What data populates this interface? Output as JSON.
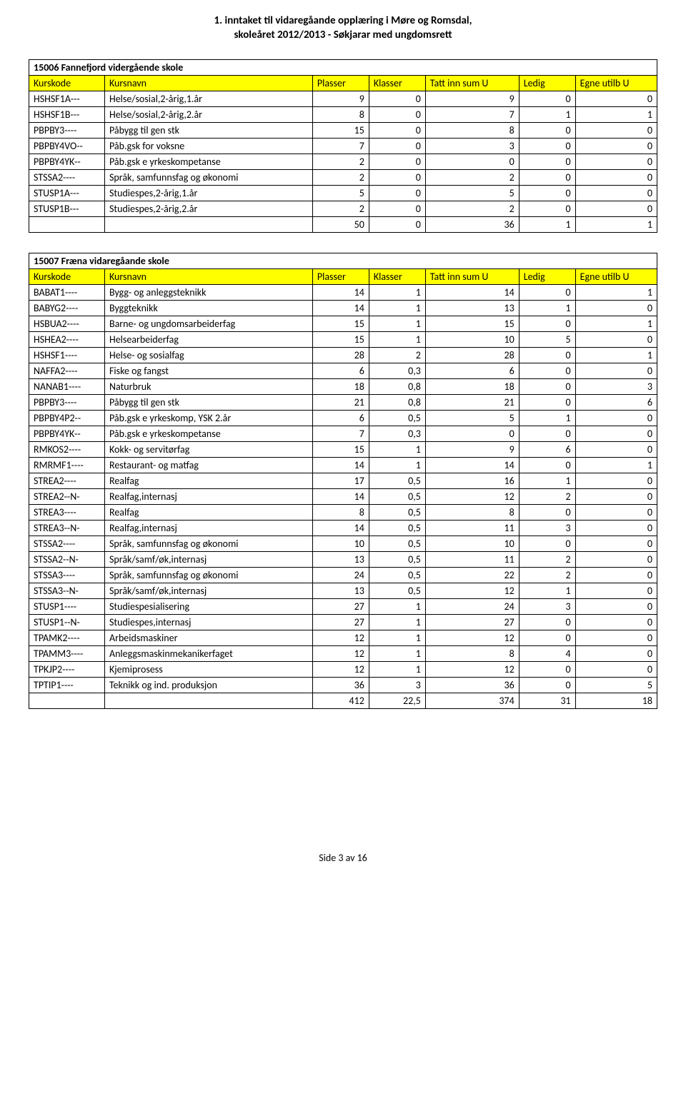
{
  "header": {
    "line1": "1. inntaket til vidaregåande opplæring i Møre og Romsdal,",
    "line2": "skoleåret 2012/2013 - Søkjarar med ungdomsrett"
  },
  "columns": [
    "Kurskode",
    "Kursnavn",
    "Plasser",
    "Klasser",
    "Tatt inn sum U",
    "Ledig",
    "Egne utilb U"
  ],
  "tables": [
    {
      "title": "15006 Fannefjord vidergående skole",
      "rows": [
        [
          "HSHSF1A---",
          "Helse/sosial,2-årig,1.år",
          "9",
          "0",
          "9",
          "0",
          "0"
        ],
        [
          "HSHSF1B---",
          "Helse/sosial,2-årig,2.år",
          "8",
          "0",
          "7",
          "1",
          "1"
        ],
        [
          "PBPBY3----",
          "Påbygg til gen stk",
          "15",
          "0",
          "8",
          "0",
          "0"
        ],
        [
          "PBPBY4VO--",
          "Påb.gsk  for voksne",
          "7",
          "0",
          "3",
          "0",
          "0"
        ],
        [
          "PBPBY4YK--",
          "Påb.gsk  e yrkeskompetanse",
          "2",
          "0",
          "0",
          "0",
          "0"
        ],
        [
          "STSSA2----",
          "Språk, samfunnsfag og økonomi",
          "2",
          "0",
          "2",
          "0",
          "0"
        ],
        [
          "STUSP1A---",
          "Studiespes,2-årig,1.år",
          "5",
          "0",
          "5",
          "0",
          "0"
        ],
        [
          "STUSP1B---",
          "Studiespes,2-årig,2.år",
          "2",
          "0",
          "2",
          "0",
          "0"
        ]
      ],
      "totals": [
        "",
        "",
        "50",
        "0",
        "36",
        "1",
        "1"
      ]
    },
    {
      "title": "15007 Fræna vidaregåande skole",
      "rows": [
        [
          "BABAT1----",
          "Bygg- og anleggsteknikk",
          "14",
          "1",
          "14",
          "0",
          "1"
        ],
        [
          "BABYG2----",
          "Byggteknikk",
          "14",
          "1",
          "13",
          "1",
          "0"
        ],
        [
          "HSBUA2----",
          "Barne- og ungdomsarbeiderfag",
          "15",
          "1",
          "15",
          "0",
          "1"
        ],
        [
          "HSHEA2----",
          "Helsearbeiderfag",
          "15",
          "1",
          "10",
          "5",
          "0"
        ],
        [
          "HSHSF1----",
          "Helse- og sosialfag",
          "28",
          "2",
          "28",
          "0",
          "1"
        ],
        [
          "NAFFA2----",
          "Fiske og fangst",
          "6",
          "0,3",
          "6",
          "0",
          "0"
        ],
        [
          "NANAB1----",
          "Naturbruk",
          "18",
          "0,8",
          "18",
          "0",
          "3"
        ],
        [
          "PBPBY3----",
          "Påbygg til gen stk",
          "21",
          "0,8",
          "21",
          "0",
          "6"
        ],
        [
          "PBPBY4P2--",
          "Påb.gsk e yrkeskomp, YSK 2.år",
          "6",
          "0,5",
          "5",
          "1",
          "0"
        ],
        [
          "PBPBY4YK--",
          "Påb.gsk  e yrkeskompetanse",
          "7",
          "0,3",
          "0",
          "0",
          "0"
        ],
        [
          "RMKOS2----",
          "Kokk- og servitørfag",
          "15",
          "1",
          "9",
          "6",
          "0"
        ],
        [
          "RMRMF1----",
          "Restaurant- og matfag",
          "14",
          "1",
          "14",
          "0",
          "1"
        ],
        [
          "STREA2----",
          "Realfag",
          "17",
          "0,5",
          "16",
          "1",
          "0"
        ],
        [
          "STREA2--N-",
          "Realfag,internasj",
          "14",
          "0,5",
          "12",
          "2",
          "0"
        ],
        [
          "STREA3----",
          "Realfag",
          "8",
          "0,5",
          "8",
          "0",
          "0"
        ],
        [
          "STREA3--N-",
          "Realfag,internasj",
          "14",
          "0,5",
          "11",
          "3",
          "0"
        ],
        [
          "STSSA2----",
          "Språk, samfunnsfag og økonomi",
          "10",
          "0,5",
          "10",
          "0",
          "0"
        ],
        [
          "STSSA2--N-",
          "Språk/samf/øk,internasj",
          "13",
          "0,5",
          "11",
          "2",
          "0"
        ],
        [
          "STSSA3----",
          "Språk, samfunnsfag og økonomi",
          "24",
          "0,5",
          "22",
          "2",
          "0"
        ],
        [
          "STSSA3--N-",
          "Språk/samf/øk,internasj",
          "13",
          "0,5",
          "12",
          "1",
          "0"
        ],
        [
          "STUSP1----",
          "Studiespesialisering",
          "27",
          "1",
          "24",
          "3",
          "0"
        ],
        [
          "STUSP1--N-",
          "Studiespes,internasj",
          "27",
          "1",
          "27",
          "0",
          "0"
        ],
        [
          "TPAMK2----",
          "Arbeidsmaskiner",
          "12",
          "1",
          "12",
          "0",
          "0"
        ],
        [
          "TPAMM3----",
          "Anleggsmaskinmekanikerfaget",
          "12",
          "1",
          "8",
          "4",
          "0"
        ],
        [
          "TPKJP2----",
          "Kjemiprosess",
          "12",
          "1",
          "12",
          "0",
          "0"
        ],
        [
          "TPTIP1----",
          "Teknikk og ind. produksjon",
          "36",
          "3",
          "36",
          "0",
          "5"
        ]
      ],
      "totals": [
        "",
        "",
        "412",
        "22,5",
        "374",
        "31",
        "18"
      ]
    }
  ],
  "footer": "Side 3 av 16"
}
